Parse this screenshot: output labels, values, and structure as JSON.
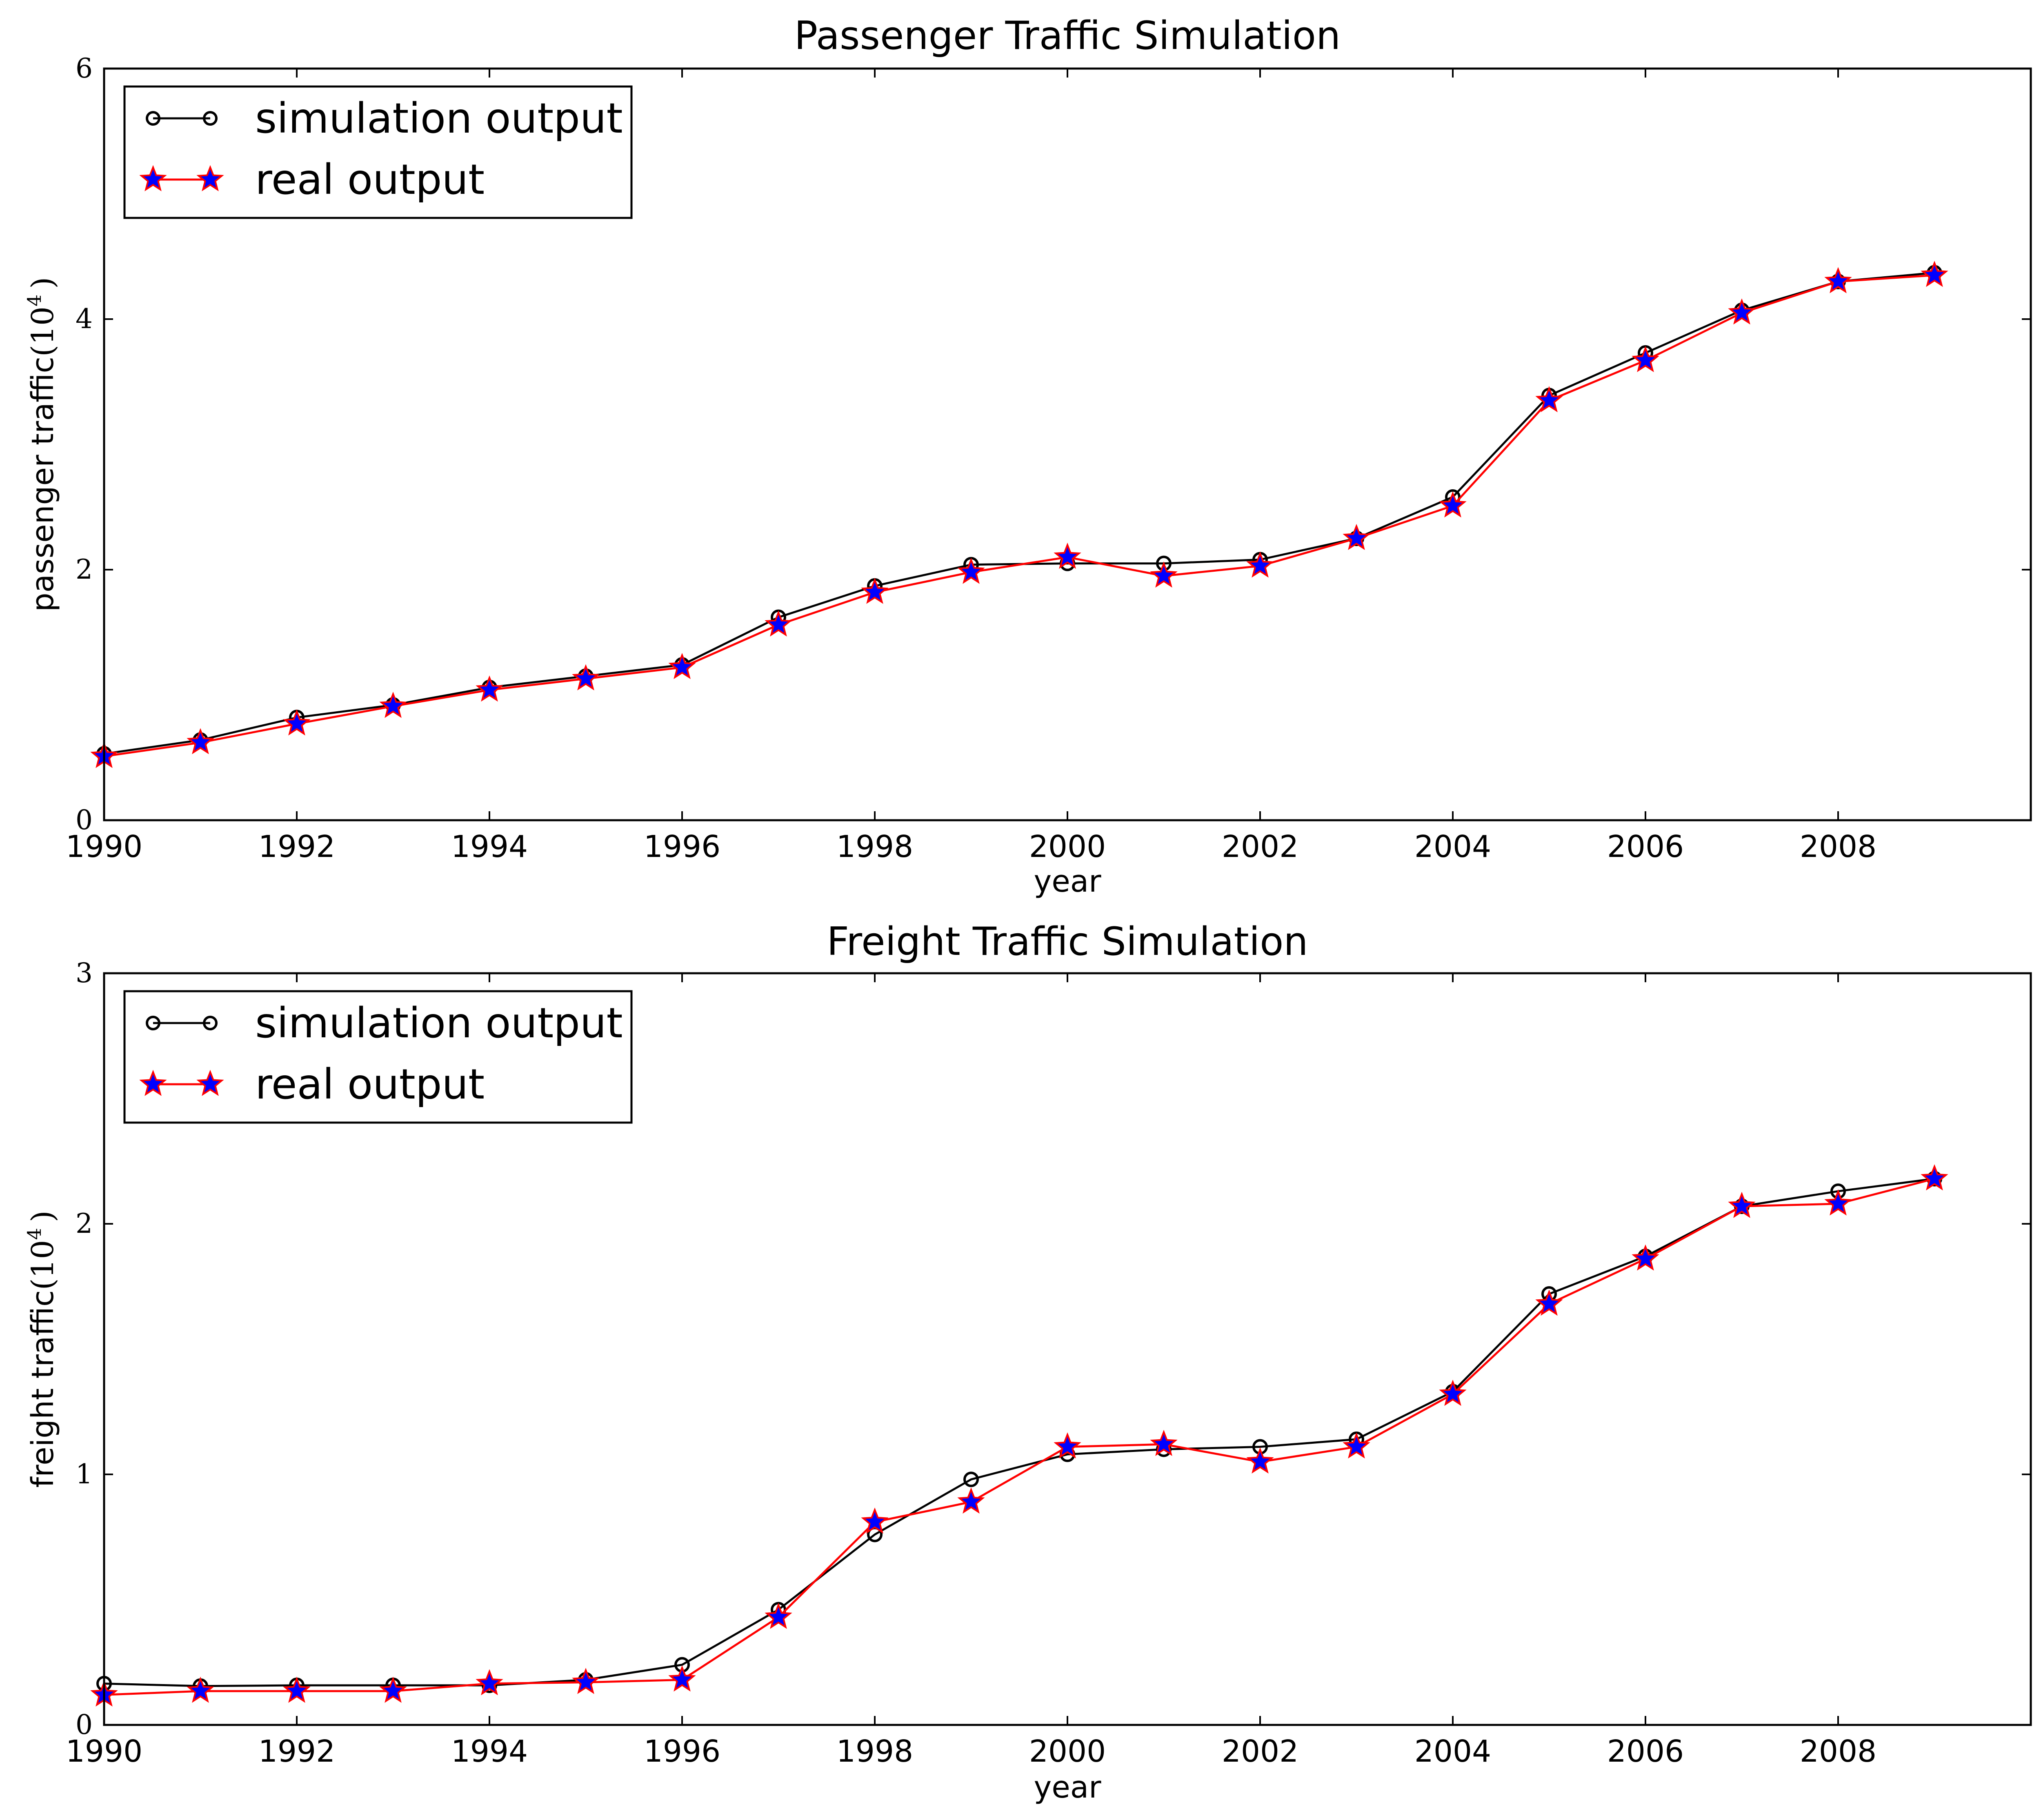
{
  "chart_data": [
    {
      "type": "line",
      "title": "Passenger Traffic Simulation",
      "xlabel": "year",
      "ylabel": "passenger traffic",
      "ylabel_unit": "(10",
      "ylabel_exp": "4",
      "ylabel_close": ")",
      "xlim": [
        1990,
        2010
      ],
      "ylim": [
        0,
        6
      ],
      "xticks": [
        1990,
        1992,
        1994,
        1996,
        1998,
        2000,
        2002,
        2004,
        2006,
        2008
      ],
      "yticks": [
        0,
        2,
        4,
        6
      ],
      "legend_position": "top-left",
      "x": [
        1990,
        1991,
        1992,
        1993,
        1994,
        1995,
        1996,
        1997,
        1998,
        1999,
        2000,
        2001,
        2002,
        2003,
        2004,
        2005,
        2006,
        2007,
        2008,
        2009
      ],
      "series": [
        {
          "name": "simulation output",
          "color": "#000000",
          "marker": "circle",
          "values": [
            0.53,
            0.64,
            0.82,
            0.92,
            1.06,
            1.15,
            1.24,
            1.62,
            1.87,
            2.04,
            2.05,
            2.05,
            2.08,
            2.25,
            2.58,
            3.39,
            3.73,
            4.07,
            4.3,
            4.37
          ]
        },
        {
          "name": "real output",
          "color": "#ff0000",
          "marker_color": "#0000ff",
          "marker": "star",
          "values": [
            0.51,
            0.62,
            0.77,
            0.91,
            1.04,
            1.13,
            1.22,
            1.56,
            1.82,
            1.98,
            2.1,
            1.95,
            2.03,
            2.25,
            2.51,
            3.35,
            3.67,
            4.05,
            4.3,
            4.35
          ]
        }
      ]
    },
    {
      "type": "line",
      "title": "Freight Traffic Simulation",
      "xlabel": "year",
      "ylabel": "freight traffic",
      "ylabel_unit": "(10",
      "ylabel_exp": "4",
      "ylabel_close": ")",
      "xlim": [
        1990,
        2010
      ],
      "ylim": [
        0,
        3
      ],
      "xticks": [
        1990,
        1992,
        1994,
        1996,
        1998,
        2000,
        2002,
        2004,
        2006,
        2008
      ],
      "yticks": [
        0,
        1,
        2,
        3
      ],
      "legend_position": "top-left",
      "x": [
        1990,
        1991,
        1992,
        1993,
        1994,
        1995,
        1996,
        1997,
        1998,
        1999,
        2000,
        2001,
        2002,
        2003,
        2004,
        2005,
        2006,
        2007,
        2008,
        2009
      ],
      "series": [
        {
          "name": "simulation output",
          "color": "#000000",
          "marker": "circle",
          "values": [
            0.165,
            0.155,
            0.158,
            0.158,
            0.158,
            0.18,
            0.24,
            0.46,
            0.76,
            0.98,
            1.08,
            1.1,
            1.11,
            1.14,
            1.33,
            1.72,
            1.87,
            2.07,
            2.13,
            2.18
          ]
        },
        {
          "name": "real output",
          "color": "#ff0000",
          "marker_color": "#0000ff",
          "marker": "star",
          "values": [
            0.12,
            0.135,
            0.135,
            0.135,
            0.165,
            0.17,
            0.18,
            0.43,
            0.81,
            0.89,
            1.11,
            1.12,
            1.05,
            1.11,
            1.32,
            1.68,
            1.86,
            2.07,
            2.08,
            2.18
          ]
        }
      ]
    }
  ]
}
